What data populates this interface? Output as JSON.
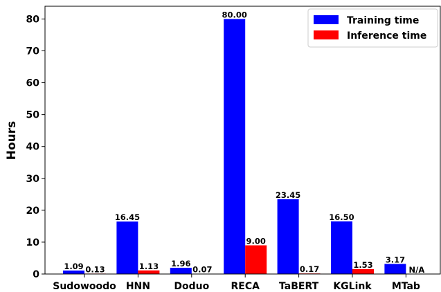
{
  "chart_data": {
    "type": "bar",
    "categories": [
      "Sudowoodo",
      "HNN",
      "Doduo",
      "RECA",
      "TaBERT",
      "KGLink",
      "MTab"
    ],
    "series": [
      {
        "name": "Training time",
        "color": "#0000ff",
        "values": [
          1.09,
          16.45,
          1.96,
          80.0,
          23.45,
          16.5,
          3.17
        ],
        "labels": [
          "1.09",
          "16.45",
          "1.96",
          "80.00",
          "23.45",
          "16.50",
          "3.17"
        ]
      },
      {
        "name": "Inference time",
        "color": "#ff0000",
        "values": [
          0.13,
          1.13,
          0.07,
          9.0,
          0.17,
          1.53,
          null
        ],
        "labels": [
          "0.13",
          "1.13",
          "0.07",
          "9.00",
          "0.17",
          "1.53",
          "N/A"
        ]
      }
    ],
    "title": "",
    "xlabel": "",
    "ylabel": "Hours",
    "ylim": [
      0,
      84
    ],
    "yticks": [
      0,
      10,
      20,
      30,
      40,
      50,
      60,
      70,
      80
    ],
    "grid": false,
    "legend_position": "top-right"
  }
}
